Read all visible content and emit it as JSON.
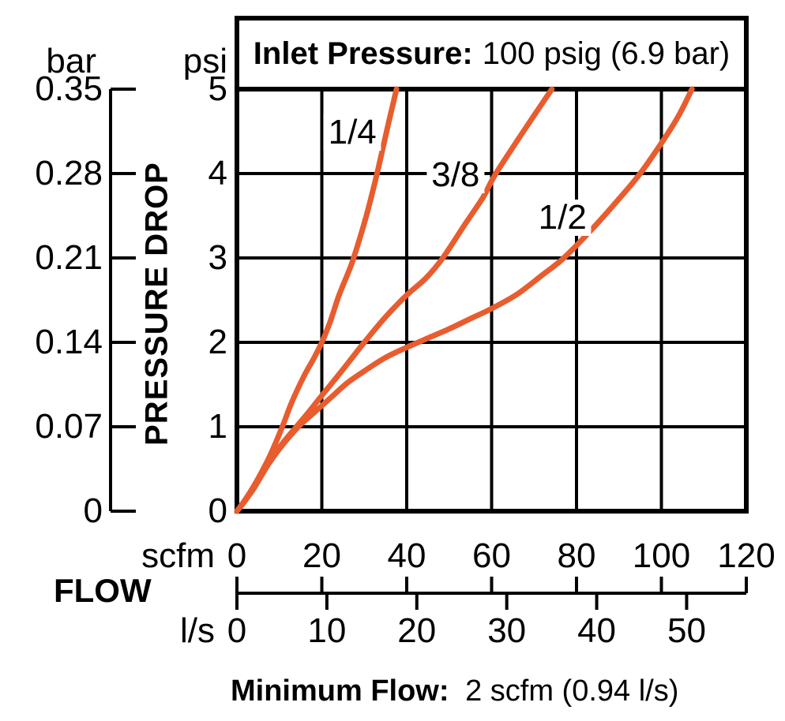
{
  "title": {
    "label": "Inlet Pressure:",
    "value": "100 psig (6.9 bar)"
  },
  "y_axis": {
    "axis_label": "PRESSURE DROP",
    "primary_unit": "psi",
    "secondary_unit": "bar",
    "psi_ticks": [
      "5",
      "4",
      "3",
      "2",
      "1",
      "0"
    ],
    "bar_ticks": [
      "0.35",
      "0.28",
      "0.21",
      "0.14",
      "0.07",
      "0"
    ]
  },
  "x_axis": {
    "axis_label": "FLOW",
    "primary_unit": "scfm",
    "secondary_unit": "l/s",
    "scfm_ticks": [
      "0",
      "20",
      "40",
      "60",
      "80",
      "100",
      "120"
    ],
    "ls_ticks": [
      "0",
      "10",
      "20",
      "30",
      "40",
      "50"
    ]
  },
  "note": {
    "label": "Minimum Flow:",
    "value": "2 scfm (0.94 l/s)"
  },
  "colors": {
    "curve": "#E85C2E",
    "axis": "#000000",
    "background": "#ffffff"
  },
  "chart_data": {
    "type": "line",
    "title": "Inlet Pressure: 100 psig (6.9 bar)",
    "xlabel": "FLOW (scfm)",
    "ylabel": "PRESSURE DROP (psi)",
    "xlim": [
      0,
      120
    ],
    "ylim": [
      0,
      5
    ],
    "x2lim_ls": [
      0,
      56.6
    ],
    "y2lim_bar": [
      0,
      0.35
    ],
    "unit_conversion": {
      "scfm_per_ls": 2.1189,
      "bar_per_psi": 0.07
    },
    "grid": true,
    "x_grid_step_scfm": 20,
    "y_grid_step_psi": 1,
    "legend_position": "inline-curve-labels",
    "series": [
      {
        "name": "1/4",
        "label_at": [
          27.2,
          4.49
        ],
        "points": [
          [
            0,
            0
          ],
          [
            2,
            0.14
          ],
          [
            4,
            0.3
          ],
          [
            6,
            0.48
          ],
          [
            8,
            0.68
          ],
          [
            10.7,
            1.0
          ],
          [
            13,
            1.3
          ],
          [
            16,
            1.62
          ],
          [
            18,
            1.8
          ],
          [
            20,
            2.0
          ],
          [
            22,
            2.25
          ],
          [
            24,
            2.55
          ],
          [
            26,
            2.8
          ],
          [
            27.5,
            3.0
          ],
          [
            30.5,
            3.5
          ],
          [
            33,
            4.0
          ],
          [
            35.5,
            4.55
          ],
          [
            37.6,
            5.0
          ]
        ]
      },
      {
        "name": "3/8",
        "label_at": [
          51.5,
          3.98
        ],
        "points": [
          [
            0,
            0
          ],
          [
            2,
            0.13
          ],
          [
            4,
            0.28
          ],
          [
            6,
            0.45
          ],
          [
            8,
            0.62
          ],
          [
            11,
            0.82
          ],
          [
            14,
            1.0
          ],
          [
            17,
            1.18
          ],
          [
            20,
            1.37
          ],
          [
            25,
            1.68
          ],
          [
            30,
            2.0
          ],
          [
            35,
            2.3
          ],
          [
            40,
            2.56
          ],
          [
            44.5,
            2.76
          ],
          [
            48.5,
            3.0
          ],
          [
            54,
            3.42
          ],
          [
            58,
            3.72
          ],
          [
            61,
            4.0
          ],
          [
            67.5,
            4.5
          ],
          [
            74.2,
            5.0
          ]
        ]
      },
      {
        "name": "1/2",
        "label_at": [
          76.7,
          3.48
        ],
        "points": [
          [
            0,
            0
          ],
          [
            2,
            0.13
          ],
          [
            4,
            0.27
          ],
          [
            6,
            0.44
          ],
          [
            8,
            0.6
          ],
          [
            11,
            0.8
          ],
          [
            14.5,
            1.0
          ],
          [
            18,
            1.16
          ],
          [
            22,
            1.34
          ],
          [
            26,
            1.52
          ],
          [
            30,
            1.66
          ],
          [
            35,
            1.82
          ],
          [
            40,
            1.94
          ],
          [
            45,
            2.05
          ],
          [
            50,
            2.16
          ],
          [
            55,
            2.28
          ],
          [
            60,
            2.4
          ],
          [
            66,
            2.57
          ],
          [
            72,
            2.8
          ],
          [
            77,
            3.0
          ],
          [
            84,
            3.36
          ],
          [
            90,
            3.7
          ],
          [
            95,
            4.0
          ],
          [
            100,
            4.36
          ],
          [
            104,
            4.68
          ],
          [
            107.2,
            5.0
          ]
        ]
      }
    ]
  }
}
